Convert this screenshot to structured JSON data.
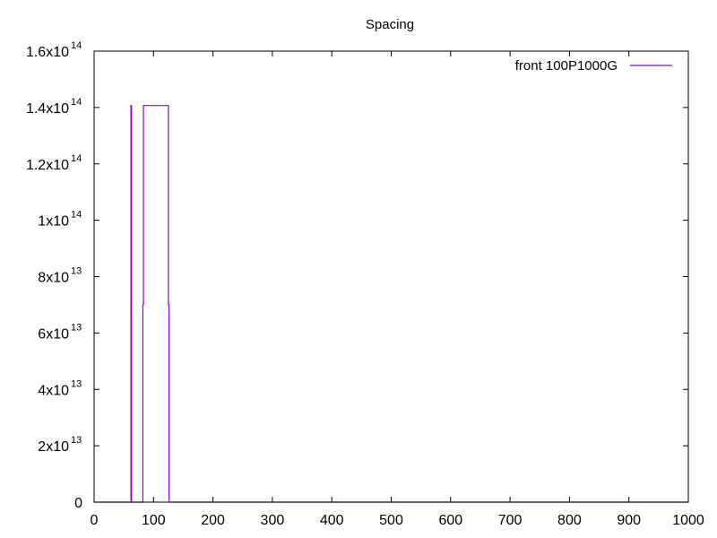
{
  "chart_data": {
    "type": "line",
    "title": "Spacing",
    "xlabel": "",
    "ylabel": "",
    "xlim": [
      0,
      1000
    ],
    "ylim": [
      0,
      160000000000000.0
    ],
    "x_ticks": [
      {
        "value": 0,
        "label": "0"
      },
      {
        "value": 100,
        "label": "100"
      },
      {
        "value": 200,
        "label": "200"
      },
      {
        "value": 300,
        "label": "300"
      },
      {
        "value": 400,
        "label": "400"
      },
      {
        "value": 500,
        "label": "500"
      },
      {
        "value": 600,
        "label": "600"
      },
      {
        "value": 700,
        "label": "700"
      },
      {
        "value": 800,
        "label": "800"
      },
      {
        "value": 900,
        "label": "900"
      },
      {
        "value": 1000,
        "label": "1000"
      }
    ],
    "y_ticks": [
      {
        "value": 0,
        "mantissa": "0",
        "exponent": ""
      },
      {
        "value": 20000000000000.0,
        "mantissa": "2x10",
        "exponent": "13"
      },
      {
        "value": 40000000000000.0,
        "mantissa": "4x10",
        "exponent": "13"
      },
      {
        "value": 60000000000000.0,
        "mantissa": "6x10",
        "exponent": "13"
      },
      {
        "value": 80000000000000.0,
        "mantissa": "8x10",
        "exponent": "13"
      },
      {
        "value": 100000000000000.0,
        "mantissa": "1x10",
        "exponent": "14"
      },
      {
        "value": 120000000000000.0,
        "mantissa": "1.2x10",
        "exponent": "14"
      },
      {
        "value": 140000000000000.0,
        "mantissa": "1.4x10",
        "exponent": "14"
      },
      {
        "value": 160000000000000.0,
        "mantissa": "1.6x10",
        "exponent": "14"
      }
    ],
    "grid": false,
    "legend_position": "top-right",
    "series": [
      {
        "name": "front 100P1000G",
        "color": "#9400d3",
        "points": [
          [
            0,
            0
          ],
          [
            62,
            0
          ],
          [
            62,
            140700000000000.0
          ],
          [
            63,
            140700000000000.0
          ],
          [
            63,
            0
          ],
          [
            82,
            0
          ],
          [
            82,
            70000000000000.0
          ],
          [
            83,
            70000000000000.0
          ],
          [
            83,
            140700000000000.0
          ],
          [
            125,
            140700000000000.0
          ],
          [
            125,
            70000000000000.0
          ],
          [
            126,
            70000000000000.0
          ],
          [
            126,
            0
          ],
          [
            1000,
            0
          ]
        ]
      }
    ]
  }
}
